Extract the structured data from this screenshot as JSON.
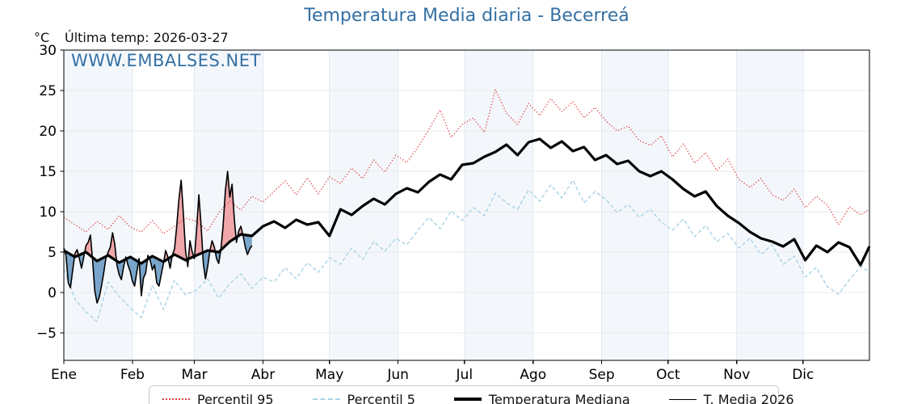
{
  "header": {
    "title": "Temperatura Media diaria - Becerreá",
    "last_temp": "Última temp: 2026-03-27",
    "y_unit": "°C",
    "watermark": "WWW.EMBALSES.NET"
  },
  "colors": {
    "accent_blue": "#3470a4",
    "percentil95_red": "#e03f3f",
    "percentil5_lightblue": "#a9d3e7",
    "median_black": "#000000",
    "fill_above": "#f0a7a9",
    "fill_below": "#7aa5ca",
    "month_band": "#f3f7fb",
    "grid_h": "#e9e9e9",
    "grid_v": "#e2e8f0"
  },
  "chart_data": {
    "type": "line",
    "title": "Temperatura Media diaria - Becerreá",
    "xlabel": "",
    "ylabel": "°C",
    "x_unit": "day_of_year",
    "xlim_days": [
      1,
      365
    ],
    "ylim": [
      -8.4,
      30
    ],
    "grid": true,
    "legend_position": "bottom-center",
    "shaded_months": [
      "Ene",
      "Mar",
      "May",
      "Jul",
      "Sep",
      "Nov"
    ],
    "x_tick_labels": [
      "Ene",
      "Feb",
      "Mar",
      "Abr",
      "May",
      "Jun",
      "Jul",
      "Ago",
      "Sep",
      "Oct",
      "Nov",
      "Dic"
    ],
    "month_start_days": [
      1,
      32,
      60,
      91,
      121,
      152,
      182,
      213,
      244,
      274,
      305,
      335
    ],
    "y_ticks": [
      30,
      25,
      20,
      15,
      10,
      5,
      0,
      -5
    ],
    "y_tick_labels": [
      "30",
      "25",
      "20",
      "15",
      "10",
      "5",
      "0",
      "−5"
    ],
    "band_color": "#f3f7fb",
    "grid_color_h": "#e9e9e9",
    "grid_color_v": "#e2e8f0",
    "fill_above_color": "#f0a7a9",
    "fill_below_color": "#7aa5ca",
    "fill_note": "fill between T. Media 2026 and Temperatura Mediana: above=pink, below=blue",
    "series": [
      {
        "id": "percentil-95",
        "name": "Percentil 95",
        "style": "dotted",
        "color": "#e03f3f",
        "width": 1.3,
        "x": [
          1,
          6,
          11,
          16,
          21,
          26,
          31,
          36,
          41,
          46,
          51,
          56,
          61,
          66,
          71,
          76,
          81,
          86,
          91,
          96,
          101,
          106,
          111,
          116,
          121,
          126,
          131,
          136,
          141,
          146,
          151,
          156,
          161,
          166,
          171,
          176,
          181,
          186,
          191,
          196,
          201,
          206,
          211,
          216,
          221,
          226,
          231,
          236,
          241,
          246,
          251,
          256,
          261,
          266,
          271,
          276,
          281,
          286,
          291,
          296,
          301,
          306,
          311,
          316,
          321,
          326,
          331,
          336,
          341,
          346,
          351,
          356,
          361,
          365
        ],
        "y": [
          9.3,
          8.4,
          7.5,
          8.8,
          7.8,
          9.5,
          8.1,
          7.5,
          8.9,
          7.3,
          8.2,
          9.2,
          8.8,
          7.6,
          9.9,
          11.3,
          10.2,
          11.9,
          11.2,
          12.5,
          13.8,
          12.1,
          14.2,
          12.2,
          14.3,
          13.5,
          15.4,
          14.1,
          16.4,
          14.9,
          17.0,
          16.1,
          18.0,
          20.2,
          22.6,
          19.2,
          20.8,
          21.6,
          19.8,
          25.1,
          22.2,
          20.8,
          23.4,
          21.9,
          24.0,
          22.4,
          23.6,
          21.6,
          22.9,
          21.2,
          20.0,
          20.6,
          18.8,
          18.2,
          19.4,
          16.8,
          18.4,
          16.0,
          17.3,
          15.1,
          16.5,
          14.0,
          13.0,
          14.1,
          12.1,
          11.4,
          12.8,
          10.5,
          11.9,
          10.8,
          8.4,
          10.6,
          9.6,
          10.3
        ]
      },
      {
        "id": "percentil-5",
        "name": "Percentil 5",
        "style": "dashed",
        "color": "#a9d3e7",
        "width": 1.4,
        "x": [
          1,
          6,
          11,
          16,
          21,
          26,
          31,
          36,
          41,
          46,
          51,
          56,
          61,
          66,
          71,
          76,
          81,
          86,
          91,
          96,
          101,
          106,
          111,
          116,
          121,
          126,
          131,
          136,
          141,
          146,
          151,
          156,
          161,
          166,
          171,
          176,
          181,
          186,
          191,
          196,
          201,
          206,
          211,
          216,
          221,
          226,
          231,
          236,
          241,
          246,
          251,
          256,
          261,
          266,
          271,
          276,
          281,
          286,
          291,
          296,
          301,
          306,
          311,
          316,
          321,
          326,
          331,
          336,
          341,
          346,
          351,
          356,
          361,
          365
        ],
        "y": [
          2.9,
          -0.8,
          -2.4,
          -3.6,
          1.3,
          -0.5,
          -1.9,
          -3.1,
          0.9,
          -2.1,
          1.5,
          -0.3,
          0.3,
          1.7,
          -0.7,
          1.1,
          2.3,
          0.5,
          1.9,
          1.3,
          3.1,
          1.7,
          3.7,
          2.5,
          4.3,
          3.5,
          5.5,
          4.1,
          6.3,
          5.1,
          6.7,
          5.9,
          7.7,
          9.3,
          7.9,
          10.1,
          8.9,
          10.5,
          9.5,
          12.3,
          11.1,
          10.3,
          12.7,
          11.3,
          13.3,
          11.7,
          13.9,
          11.1,
          12.5,
          11.5,
          9.9,
          10.9,
          9.3,
          10.3,
          8.7,
          7.7,
          9.1,
          6.9,
          8.3,
          6.3,
          7.3,
          5.5,
          6.7,
          4.7,
          5.9,
          3.5,
          4.5,
          1.9,
          3.1,
          0.7,
          -0.2,
          1.6,
          3.2,
          2.6
        ]
      },
      {
        "id": "temperatura-mediana",
        "name": "Temperatura Mediana",
        "style": "solid",
        "color": "#000000",
        "width": 3.2,
        "x": [
          1,
          6,
          11,
          16,
          21,
          26,
          31,
          36,
          41,
          46,
          51,
          56,
          61,
          66,
          71,
          76,
          81,
          86,
          91,
          96,
          101,
          106,
          111,
          116,
          121,
          126,
          131,
          136,
          141,
          146,
          151,
          156,
          161,
          166,
          171,
          176,
          181,
          186,
          191,
          196,
          201,
          206,
          211,
          216,
          221,
          226,
          231,
          236,
          241,
          246,
          251,
          256,
          261,
          266,
          271,
          276,
          281,
          286,
          291,
          296,
          301,
          306,
          311,
          316,
          321,
          326,
          331,
          336,
          341,
          346,
          351,
          356,
          361,
          365
        ],
        "y": [
          5.2,
          4.4,
          5.0,
          3.9,
          4.6,
          3.7,
          4.4,
          3.6,
          4.5,
          3.8,
          4.7,
          4.0,
          4.6,
          5.2,
          5.0,
          6.3,
          7.2,
          7.0,
          8.2,
          8.8,
          8.0,
          9.0,
          8.4,
          8.7,
          7.0,
          10.3,
          9.6,
          10.7,
          11.6,
          10.9,
          12.2,
          12.9,
          12.4,
          13.7,
          14.6,
          14.0,
          15.8,
          16.0,
          16.8,
          17.4,
          18.3,
          17.0,
          18.6,
          19.0,
          17.9,
          18.7,
          17.5,
          18.0,
          16.4,
          17.0,
          15.9,
          16.3,
          15.0,
          14.4,
          15.0,
          14.0,
          12.8,
          11.9,
          12.5,
          10.7,
          9.5,
          8.6,
          7.5,
          6.7,
          6.3,
          5.7,
          6.6,
          4.0,
          5.8,
          5.0,
          6.2,
          5.6,
          3.4,
          5.7
        ]
      },
      {
        "id": "t-media-2026",
        "name": "T. Media 2026",
        "style": "solid",
        "color": "#000000",
        "width": 1.6,
        "x": [
          1,
          2,
          3,
          4,
          5,
          6,
          7,
          8,
          9,
          10,
          11,
          12,
          13,
          14,
          15,
          16,
          17,
          18,
          19,
          20,
          21,
          22,
          23,
          24,
          25,
          26,
          27,
          28,
          29,
          30,
          31,
          32,
          33,
          34,
          35,
          36,
          37,
          38,
          39,
          40,
          41,
          42,
          43,
          44,
          45,
          46,
          47,
          48,
          49,
          50,
          51,
          52,
          53,
          54,
          55,
          56,
          57,
          58,
          59,
          60,
          61,
          62,
          63,
          64,
          65,
          66,
          67,
          68,
          69,
          70,
          71,
          72,
          73,
          74,
          75,
          76,
          77,
          78,
          79,
          80,
          81,
          82,
          83,
          84,
          85,
          86
        ],
        "y": [
          5.5,
          4.6,
          1.2,
          0.6,
          2.8,
          4.8,
          5.3,
          4.2,
          3.0,
          4.4,
          5.8,
          6.2,
          7.1,
          4.0,
          0.2,
          -1.3,
          -0.6,
          0.8,
          2.4,
          4.2,
          5.0,
          5.6,
          7.4,
          6.0,
          3.4,
          2.2,
          1.6,
          3.2,
          4.4,
          3.4,
          2.6,
          1.4,
          0.8,
          2.6,
          4.2,
          -0.4,
          1.8,
          2.4,
          4.6,
          4.0,
          2.8,
          3.4,
          1.2,
          0.8,
          2.2,
          3.6,
          5.2,
          4.4,
          3.0,
          4.6,
          5.4,
          8.2,
          11.5,
          13.9,
          9.8,
          5.2,
          3.2,
          6.4,
          5.0,
          4.2,
          7.8,
          12.1,
          8.4,
          3.6,
          1.7,
          3.2,
          5.2,
          6.4,
          5.6,
          4.2,
          3.6,
          5.4,
          8.4,
          12.6,
          15.0,
          11.8,
          13.4,
          9.2,
          6.2,
          7.6,
          8.2,
          7.0,
          5.6,
          4.7,
          5.4,
          5.8
        ]
      }
    ]
  },
  "legend": {
    "items": [
      {
        "label": "Percentil 95",
        "swatch": "dotted",
        "color": "#e03f3f",
        "thickness": 2
      },
      {
        "label": "Percentil 5",
        "swatch": "dashed",
        "color": "#a9d3e7",
        "thickness": 2
      },
      {
        "label": "Temperatura Mediana",
        "swatch": "solid",
        "color": "#000000",
        "thickness": 4
      },
      {
        "label": "T. Media 2026",
        "swatch": "solid",
        "color": "#000000",
        "thickness": 1.5
      }
    ]
  }
}
